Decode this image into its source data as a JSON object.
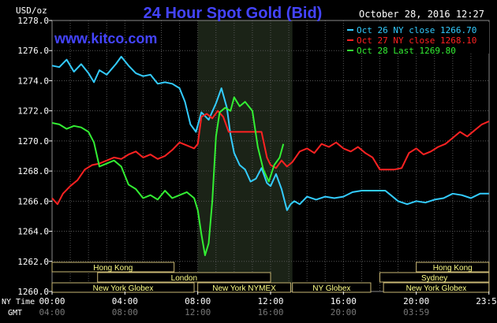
{
  "chart_data": {
    "type": "line",
    "title": "24 Hour Spot Gold (Bid)",
    "site": "www.kitco.com",
    "date_stamp": "October 28, 2016 12:27",
    "ylabel": "USD/oz",
    "ylim": [
      1260.0,
      1278.0
    ],
    "yticks": [
      "1260.0",
      "1262.0",
      "1264.0",
      "1266.0",
      "1268.0",
      "1270.0",
      "1272.0",
      "1274.0",
      "1276.0",
      "1278.0"
    ],
    "x_row_label": "NY Time",
    "x_row2_label": "GMT",
    "x_ticks": [
      "00:00",
      "04:00",
      "08:00",
      "12:00",
      "16:00",
      "20:00",
      "23:59"
    ],
    "gmt_ticks": [
      "04:00",
      "08:00",
      "12:00",
      "16:00",
      "20:00",
      "03:59"
    ],
    "grid": true,
    "legend_position": "top-right",
    "shaded_range": [
      8.0,
      13.2
    ],
    "series": [
      {
        "name": "Oct 26 NY close 1266.70",
        "color": "#33ccff",
        "x": [
          0,
          0.4,
          0.8,
          1.2,
          1.6,
          2.0,
          2.3,
          2.6,
          3.0,
          3.5,
          3.8,
          4.2,
          4.6,
          5.0,
          5.4,
          5.8,
          6.2,
          6.6,
          7.0,
          7.3,
          7.6,
          7.9,
          8.2,
          8.6,
          9.0,
          9.3,
          9.6,
          9.8,
          10.0,
          10.3,
          10.6,
          10.9,
          11.2,
          11.5,
          11.8,
          12.0,
          12.3,
          12.6,
          12.9,
          13.1,
          13.3,
          13.6,
          14.0,
          14.5,
          15.0,
          15.5,
          16.0,
          16.5,
          17.0,
          17.5,
          18.0,
          18.3,
          18.6,
          19.0,
          19.5,
          20.0,
          20.5,
          21.0,
          21.5,
          22.0,
          22.5,
          23.0,
          23.5,
          23.99
        ],
        "y": [
          1275.0,
          1274.9,
          1275.4,
          1274.6,
          1275.1,
          1274.5,
          1273.9,
          1274.7,
          1274.4,
          1275.1,
          1275.6,
          1275.0,
          1274.5,
          1274.3,
          1274.4,
          1273.8,
          1273.9,
          1273.8,
          1273.5,
          1272.6,
          1271.1,
          1270.6,
          1271.9,
          1271.4,
          1272.5,
          1273.5,
          1272.2,
          1270.4,
          1269.2,
          1268.4,
          1268.1,
          1267.3,
          1267.5,
          1268.2,
          1267.2,
          1267.0,
          1267.8,
          1266.8,
          1265.4,
          1265.8,
          1266.0,
          1265.8,
          1266.3,
          1266.1,
          1266.3,
          1266.2,
          1266.3,
          1266.6,
          1266.7,
          1266.7,
          1266.7,
          1266.7,
          1266.4,
          1266.0,
          1265.8,
          1266.0,
          1265.9,
          1266.1,
          1266.2,
          1266.5,
          1266.4,
          1266.2,
          1266.5,
          1266.5
        ]
      },
      {
        "name": "Oct 27 NY close 1268.10",
        "color": "#ff2222",
        "x": [
          0,
          0.3,
          0.6,
          1.0,
          1.4,
          1.8,
          2.2,
          2.6,
          3.0,
          3.4,
          3.8,
          4.2,
          4.6,
          5.0,
          5.4,
          5.8,
          6.2,
          6.6,
          7.0,
          7.4,
          7.8,
          8.0,
          8.2,
          8.5,
          8.8,
          9.1,
          9.4,
          9.7,
          10.0,
          10.5,
          11.0,
          11.5,
          11.8,
          12.0,
          12.3,
          12.6,
          12.9,
          13.2,
          13.6,
          14.0,
          14.4,
          14.8,
          15.2,
          15.6,
          16.0,
          16.4,
          16.8,
          17.2,
          17.6,
          18.0,
          18.4,
          18.8,
          19.2,
          19.6,
          20.0,
          20.4,
          20.8,
          21.2,
          21.6,
          22.0,
          22.4,
          22.8,
          23.2,
          23.6,
          23.99
        ],
        "y": [
          1266.2,
          1265.8,
          1266.5,
          1267.0,
          1267.4,
          1268.1,
          1268.4,
          1268.5,
          1268.7,
          1268.9,
          1268.8,
          1269.1,
          1269.3,
          1268.9,
          1269.1,
          1268.8,
          1269.0,
          1269.4,
          1269.9,
          1269.7,
          1269.5,
          1269.8,
          1271.6,
          1271.8,
          1271.5,
          1272.0,
          1271.6,
          1270.6,
          1270.6,
          1270.6,
          1270.6,
          1270.6,
          1268.9,
          1268.4,
          1268.2,
          1268.7,
          1268.3,
          1268.6,
          1269.3,
          1269.5,
          1269.2,
          1269.8,
          1269.6,
          1269.9,
          1269.5,
          1269.3,
          1269.6,
          1269.2,
          1268.9,
          1268.1,
          1268.1,
          1268.1,
          1268.2,
          1269.2,
          1269.5,
          1269.1,
          1269.3,
          1269.6,
          1269.8,
          1270.2,
          1270.6,
          1270.3,
          1270.7,
          1271.1,
          1271.3
        ]
      },
      {
        "name": "Oct 28 Last 1269.80",
        "color": "#33ee33",
        "x": [
          0,
          0.4,
          0.8,
          1.2,
          1.6,
          2.0,
          2.3,
          2.6,
          3.0,
          3.4,
          3.8,
          4.2,
          4.6,
          5.0,
          5.4,
          5.8,
          6.2,
          6.6,
          7.0,
          7.4,
          7.8,
          8.0,
          8.2,
          8.4,
          8.6,
          8.8,
          9.0,
          9.2,
          9.5,
          9.8,
          10.0,
          10.3,
          10.6,
          11.0,
          11.3,
          11.6,
          11.9,
          12.2,
          12.5,
          12.7
        ],
        "y": [
          1271.2,
          1271.1,
          1270.8,
          1271.0,
          1270.9,
          1270.6,
          1269.9,
          1268.3,
          1268.5,
          1268.7,
          1268.3,
          1267.1,
          1266.8,
          1266.2,
          1266.4,
          1266.1,
          1266.7,
          1266.2,
          1266.4,
          1266.6,
          1266.2,
          1265.4,
          1263.8,
          1262.4,
          1263.2,
          1266.0,
          1270.3,
          1271.9,
          1272.2,
          1272.0,
          1272.9,
          1272.3,
          1272.6,
          1272.0,
          1269.6,
          1268.1,
          1267.3,
          1268.4,
          1268.9,
          1269.8
        ]
      }
    ],
    "sessions": [
      {
        "label": "Hong Kong",
        "start": 0.0,
        "end": 6.7,
        "row": 0
      },
      {
        "label": "Hong Kong",
        "start": 20.0,
        "end": 23.99,
        "row": 0
      },
      {
        "label": "London",
        "start": 2.5,
        "end": 12.0,
        "row": 1
      },
      {
        "label": "Sydney",
        "start": 18.0,
        "end": 23.99,
        "row": 1
      },
      {
        "label": "New York Globex",
        "start": 0.0,
        "end": 7.8,
        "row": 2
      },
      {
        "label": "New York NYMEX",
        "start": 8.0,
        "end": 13.1,
        "row": 2
      },
      {
        "label": "NY Globex",
        "start": 13.2,
        "end": 17.5,
        "row": 2
      },
      {
        "label": "New York Globex",
        "start": 18.2,
        "end": 23.99,
        "row": 2
      }
    ]
  }
}
